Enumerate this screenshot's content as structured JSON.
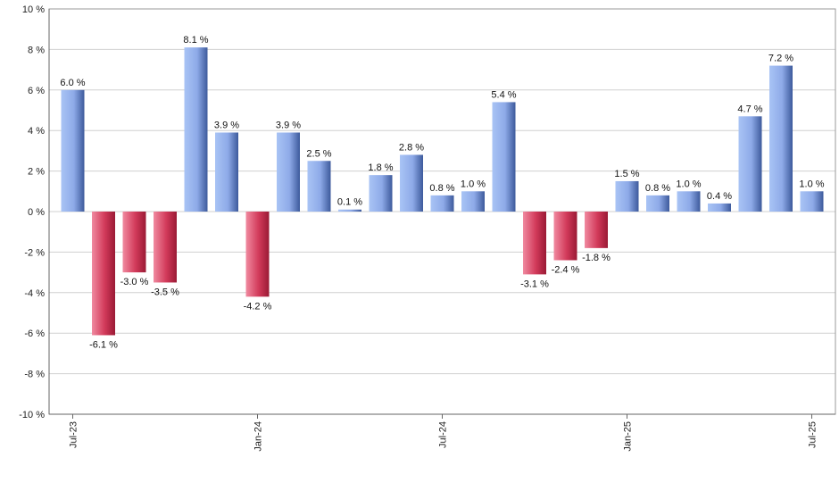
{
  "chart_data": {
    "type": "bar",
    "title": "",
    "xlabel": "",
    "ylabel": "",
    "ylim": [
      -10,
      10
    ],
    "y_ticks": [
      -10,
      -8,
      -6,
      -4,
      -2,
      0,
      2,
      4,
      6,
      8,
      10
    ],
    "y_tick_labels": [
      "-10 %",
      "-8 %",
      "-6 %",
      "-4 %",
      "-2 %",
      "0 %",
      "2 %",
      "4 %",
      "6 %",
      "8 %",
      "10 %"
    ],
    "grid": true,
    "categories": [
      "2023-07",
      "2023-08",
      "2023-09",
      "2023-10",
      "2023-11",
      "2023-12",
      "2024-01",
      "2024-02",
      "2024-03",
      "2024-04",
      "2024-05",
      "2024-06",
      "2024-07",
      "2024-08",
      "2024-09",
      "2024-10",
      "2024-11",
      "2024-12",
      "2025-01",
      "2025-02",
      "2025-03",
      "2025-04",
      "2025-05",
      "2025-06",
      "2025-07"
    ],
    "values": [
      6.0,
      -6.1,
      -3.0,
      -3.5,
      8.1,
      3.9,
      -4.2,
      3.9,
      2.5,
      0.1,
      1.8,
      2.8,
      0.8,
      1.0,
      5.4,
      -3.1,
      -2.4,
      -1.8,
      1.5,
      0.8,
      1.0,
      0.4,
      4.7,
      7.2,
      1.0
    ],
    "value_labels": [
      "6.0 %",
      "-6.1 %",
      "-3.0 %",
      "-3.5 %",
      "8.1 %",
      "3.9 %",
      "-4.2 %",
      "3.9 %",
      "2.5 %",
      "0.1 %",
      "1.8 %",
      "2.8 %",
      "0.8 %",
      "1.0 %",
      "5.4 %",
      "-3.1 %",
      "-2.4 %",
      "-1.8 %",
      "1.5 %",
      "0.8 %",
      "1.0 %",
      "0.4 %",
      "4.7 %",
      "7.2 %",
      "1.0 %"
    ],
    "x_tick_labels": [
      {
        "category": "2023-07",
        "label": "Jul-23"
      },
      {
        "category": "2024-01",
        "label": "Jan-24"
      },
      {
        "category": "2024-07",
        "label": "Jul-24"
      },
      {
        "category": "2025-01",
        "label": "Jan-25"
      },
      {
        "category": "2025-07",
        "label": "Jul-25"
      }
    ],
    "colors": {
      "positive_light": "#a9c4f5",
      "positive_dark": "#3d5a9c",
      "negative_light": "#f08aa0",
      "negative_dark": "#9a1a35"
    }
  }
}
